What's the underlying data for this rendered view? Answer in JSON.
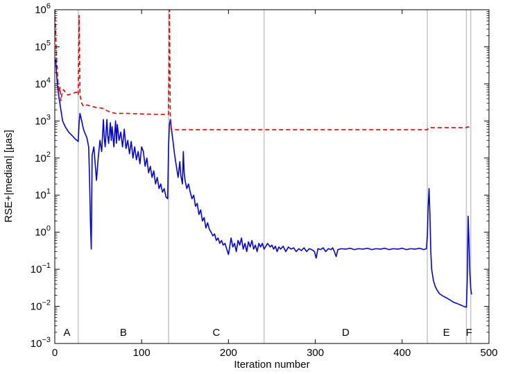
{
  "chart_data": {
    "type": "line",
    "xlabel": "Iteration number",
    "ylabel": "RSE+|median| [μas]",
    "xlim": [
      0,
      500
    ],
    "ylim_log10": [
      -3,
      6
    ],
    "y_scale": "log",
    "x_ticks": [
      {
        "value": 0,
        "label": "0"
      },
      {
        "value": 100,
        "label": "100"
      },
      {
        "value": 200,
        "label": "200"
      },
      {
        "value": 300,
        "label": "300"
      },
      {
        "value": 400,
        "label": "400"
      },
      {
        "value": 500,
        "label": "500"
      }
    ],
    "y_ticks": [
      {
        "exp": -3,
        "base": "10",
        "sup": "−3"
      },
      {
        "exp": -2,
        "base": "10",
        "sup": "−2"
      },
      {
        "exp": -1,
        "base": "10",
        "sup": "−1"
      },
      {
        "exp": 0,
        "base": "10",
        "sup": "0"
      },
      {
        "exp": 1,
        "base": "10",
        "sup": "1"
      },
      {
        "exp": 2,
        "base": "10",
        "sup": "2"
      },
      {
        "exp": 3,
        "base": "10",
        "sup": "3"
      },
      {
        "exp": 4,
        "base": "10",
        "sup": "4"
      },
      {
        "exp": 5,
        "base": "10",
        "sup": "5"
      },
      {
        "exp": 6,
        "base": "10",
        "sup": "6"
      }
    ],
    "phase_boundaries": [
      27,
      131,
      241,
      429,
      474,
      479
    ],
    "phase_labels": [
      {
        "label": "A",
        "x": 14
      },
      {
        "label": "B",
        "x": 79
      },
      {
        "label": "C",
        "x": 186
      },
      {
        "label": "D",
        "x": 335
      },
      {
        "label": "E",
        "x": 451
      },
      {
        "label": "F",
        "x": 477
      }
    ],
    "phase_label_y": 0.002,
    "colors": {
      "solid_series": "#0000e6",
      "dashed_series": "#e60000",
      "boundary": "#c8c8c8"
    },
    "series": [
      {
        "style": "solid",
        "points": [
          [
            0,
            40000
          ],
          [
            1,
            45000
          ],
          [
            2,
            20000
          ],
          [
            3,
            9000
          ],
          [
            5,
            4000
          ],
          [
            7,
            2000
          ],
          [
            9,
            1000
          ],
          [
            12,
            700
          ],
          [
            16,
            500
          ],
          [
            20,
            400
          ],
          [
            24,
            320
          ],
          [
            27,
            280
          ],
          [
            28,
            900
          ],
          [
            29,
            1600
          ],
          [
            31,
            1000
          ],
          [
            33,
            600
          ],
          [
            35,
            450
          ],
          [
            37,
            350
          ],
          [
            39,
            200
          ],
          [
            40,
            30
          ],
          [
            41,
            2
          ],
          [
            42,
            0.35
          ],
          [
            43,
            120
          ],
          [
            45,
            200
          ],
          [
            46,
            100
          ],
          [
            48,
            25
          ],
          [
            50,
            100
          ],
          [
            52,
            300
          ],
          [
            54,
            150
          ],
          [
            56,
            1100
          ],
          [
            57,
            350
          ],
          [
            58,
            200
          ],
          [
            60,
            1100
          ],
          [
            61,
            400
          ],
          [
            62,
            250
          ],
          [
            64,
            900
          ],
          [
            65,
            300
          ],
          [
            66,
            700
          ],
          [
            68,
            200
          ],
          [
            70,
            1000
          ],
          [
            71,
            250
          ],
          [
            72,
            800
          ],
          [
            74,
            300
          ],
          [
            76,
            500
          ],
          [
            78,
            200
          ],
          [
            80,
            600
          ],
          [
            82,
            180
          ],
          [
            84,
            300
          ],
          [
            86,
            130
          ],
          [
            88,
            280
          ],
          [
            90,
            100
          ],
          [
            92,
            200
          ],
          [
            94,
            90
          ],
          [
            96,
            150
          ],
          [
            98,
            70
          ],
          [
            100,
            200
          ],
          [
            102,
            150
          ],
          [
            104,
            60
          ],
          [
            106,
            100
          ],
          [
            108,
            40
          ],
          [
            110,
            60
          ],
          [
            112,
            30
          ],
          [
            114,
            45
          ],
          [
            116,
            20
          ],
          [
            118,
            30
          ],
          [
            120,
            15
          ],
          [
            122,
            20
          ],
          [
            124,
            12
          ],
          [
            126,
            15
          ],
          [
            128,
            9
          ],
          [
            130,
            8
          ],
          [
            131,
            200
          ],
          [
            132,
            800
          ],
          [
            133,
            1100
          ],
          [
            134,
            700
          ],
          [
            136,
            300
          ],
          [
            138,
            120
          ],
          [
            140,
            60
          ],
          [
            142,
            30
          ],
          [
            144,
            80
          ],
          [
            145,
            35
          ],
          [
            147,
            20
          ],
          [
            148,
            150
          ],
          [
            149,
            40
          ],
          [
            150,
            25
          ],
          [
            152,
            15
          ],
          [
            154,
            20
          ],
          [
            156,
            12
          ],
          [
            158,
            8
          ],
          [
            160,
            10
          ],
          [
            162,
            5
          ],
          [
            164,
            6
          ],
          [
            166,
            3
          ],
          [
            168,
            4
          ],
          [
            170,
            2
          ],
          [
            172,
            2.5
          ],
          [
            174,
            1.3
          ],
          [
            176,
            1.8
          ],
          [
            178,
            1.2
          ],
          [
            180,
            1.0
          ],
          [
            182,
            0.8
          ],
          [
            184,
            0.9
          ],
          [
            186,
            0.6
          ],
          [
            188,
            0.7
          ],
          [
            190,
            0.5
          ],
          [
            192,
            0.6
          ],
          [
            194,
            0.45
          ],
          [
            196,
            0.5
          ],
          [
            198,
            0.35
          ],
          [
            200,
            0.25
          ],
          [
            202,
            0.5
          ],
          [
            203,
            0.7
          ],
          [
            205,
            0.4
          ],
          [
            207,
            0.5
          ],
          [
            209,
            0.3
          ],
          [
            211,
            0.6
          ],
          [
            213,
            0.45
          ],
          [
            215,
            0.7
          ],
          [
            217,
            0.35
          ],
          [
            219,
            0.5
          ],
          [
            221,
            0.3
          ],
          [
            223,
            0.55
          ],
          [
            225,
            0.4
          ],
          [
            227,
            0.6
          ],
          [
            229,
            0.35
          ],
          [
            231,
            0.45
          ],
          [
            233,
            0.3
          ],
          [
            235,
            0.5
          ],
          [
            237,
            0.4
          ],
          [
            239,
            0.5
          ],
          [
            241,
            0.35
          ],
          [
            245,
            0.5
          ],
          [
            248,
            0.4
          ],
          [
            250,
            0.45
          ],
          [
            252,
            0.35
          ],
          [
            254,
            0.42
          ],
          [
            256,
            0.3
          ],
          [
            258,
            0.4
          ],
          [
            260,
            0.35
          ],
          [
            263,
            0.42
          ],
          [
            266,
            0.3
          ],
          [
            269,
            0.4
          ],
          [
            272,
            0.35
          ],
          [
            275,
            0.38
          ],
          [
            278,
            0.3
          ],
          [
            281,
            0.36
          ],
          [
            284,
            0.32
          ],
          [
            287,
            0.38
          ],
          [
            290,
            0.3
          ],
          [
            293,
            0.36
          ],
          [
            296,
            0.34
          ],
          [
            299,
            0.3
          ],
          [
            301,
            0.2
          ],
          [
            303,
            0.36
          ],
          [
            306,
            0.34
          ],
          [
            309,
            0.38
          ],
          [
            312,
            0.3
          ],
          [
            315,
            0.36
          ],
          [
            318,
            0.34
          ],
          [
            320,
            0.38
          ],
          [
            322,
            0.3
          ],
          [
            324,
            0.22
          ],
          [
            326,
            0.34
          ],
          [
            330,
            0.36
          ],
          [
            335,
            0.35
          ],
          [
            340,
            0.37
          ],
          [
            345,
            0.34
          ],
          [
            350,
            0.36
          ],
          [
            355,
            0.35
          ],
          [
            360,
            0.37
          ],
          [
            365,
            0.34
          ],
          [
            370,
            0.36
          ],
          [
            375,
            0.35
          ],
          [
            380,
            0.37
          ],
          [
            385,
            0.34
          ],
          [
            390,
            0.36
          ],
          [
            395,
            0.35
          ],
          [
            400,
            0.37
          ],
          [
            405,
            0.34
          ],
          [
            410,
            0.36
          ],
          [
            415,
            0.35
          ],
          [
            420,
            0.37
          ],
          [
            425,
            0.34
          ],
          [
            428,
            0.36
          ],
          [
            429,
            0.8
          ],
          [
            430,
            5
          ],
          [
            431,
            15
          ],
          [
            432,
            3
          ],
          [
            433,
            0.3
          ],
          [
            434,
            0.1
          ],
          [
            436,
            0.05
          ],
          [
            438,
            0.035
          ],
          [
            440,
            0.028
          ],
          [
            443,
            0.022
          ],
          [
            447,
            0.019
          ],
          [
            451,
            0.017
          ],
          [
            455,
            0.015
          ],
          [
            459,
            0.013
          ],
          [
            463,
            0.012
          ],
          [
            467,
            0.011
          ],
          [
            471,
            0.01
          ],
          [
            474,
            0.0095
          ],
          [
            475,
            0.05
          ],
          [
            476,
            2.7
          ],
          [
            477,
            0.5
          ],
          [
            478,
            0.08
          ],
          [
            479,
            0.03
          ],
          [
            480,
            0.021
          ]
        ]
      },
      {
        "style": "dashed",
        "points": [
          [
            0,
            1000000
          ],
          [
            1,
            250000
          ],
          [
            2,
            50000
          ],
          [
            3,
            20000
          ],
          [
            4,
            9000
          ],
          [
            5,
            6000
          ],
          [
            6,
            8000
          ],
          [
            7,
            3500
          ],
          [
            8,
            5000
          ],
          [
            10,
            7000
          ],
          [
            12,
            6000
          ],
          [
            15,
            5000
          ],
          [
            20,
            5500
          ],
          [
            25,
            6000
          ],
          [
            27,
            5000
          ],
          [
            28,
            700000
          ],
          [
            29,
            5000
          ],
          [
            31,
            3000
          ],
          [
            33,
            2500
          ],
          [
            37,
            2700
          ],
          [
            42,
            2500
          ],
          [
            48,
            2300
          ],
          [
            55,
            2200
          ],
          [
            60,
            1900
          ],
          [
            65,
            1700
          ],
          [
            70,
            1600
          ],
          [
            80,
            1600
          ],
          [
            90,
            1580
          ],
          [
            100,
            1550
          ],
          [
            110,
            1520
          ],
          [
            120,
            1500
          ],
          [
            130,
            1500
          ],
          [
            131,
            1500
          ],
          [
            132,
            1000000
          ],
          [
            133,
            1500
          ],
          [
            134,
            600
          ],
          [
            140,
            580
          ],
          [
            160,
            580
          ],
          [
            200,
            580
          ],
          [
            241,
            580
          ],
          [
            300,
            580
          ],
          [
            350,
            580
          ],
          [
            400,
            580
          ],
          [
            429,
            580
          ],
          [
            431,
            660
          ],
          [
            450,
            660
          ],
          [
            474,
            660
          ],
          [
            475,
            690
          ],
          [
            480,
            680
          ]
        ]
      }
    ]
  }
}
